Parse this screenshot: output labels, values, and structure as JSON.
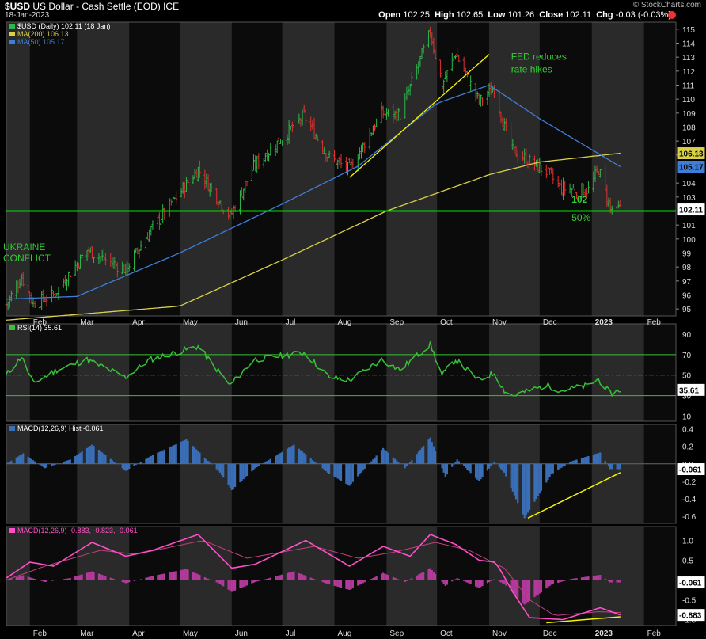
{
  "header": {
    "symbol": "$USD",
    "description": "US Dollar - Cash Settle (EOD)",
    "exchange": "ICE",
    "date": "18-Jan-2023",
    "watermark": "© StockCharts.com",
    "open_label": "Open",
    "open": "102.25",
    "high_label": "High",
    "high": "102.65",
    "low_label": "Low",
    "low": "101.26",
    "close_label": "Close",
    "close": "102.11",
    "chg_label": "Chg",
    "chg": "-0.03 (-0.03%)"
  },
  "colors": {
    "up": "#2db84a",
    "down": "#e03030",
    "ma200": "#d8cf4a",
    "ma50": "#3f7ed6",
    "rsi": "#38c038",
    "macd_hist": "#3a6fb8",
    "macd_line": "#ff4fc8",
    "support": "#00e000",
    "trend": "#f5f500",
    "annotation": "#33cc33"
  },
  "chart_data": [
    {
      "panel": "price",
      "type": "ohlc",
      "legend": [
        "$USD (Daily) 102.11 (18 Jan)",
        "MA(200) 106.13",
        "MA(50) 105.17"
      ],
      "ylim": [
        94.5,
        115.5
      ],
      "yticks": [
        95,
        96,
        97,
        98,
        99,
        100,
        101,
        102,
        103,
        104,
        105,
        106,
        107,
        108,
        109,
        110,
        111,
        112,
        113,
        114,
        115
      ],
      "xticks": [
        "Feb",
        "Mar",
        "Apr",
        "May",
        "Jun",
        "Jul",
        "Aug",
        "Sep",
        "Oct",
        "Nov",
        "Dec",
        "2023",
        "Feb"
      ],
      "x_start": "2022-01-18",
      "x_end": "2023-02-20",
      "close_anchors": [
        [
          "2022-01-18",
          95.3
        ],
        [
          "2022-01-27",
          97.3
        ],
        [
          "2022-02-03",
          95.4
        ],
        [
          "2022-02-15",
          96.0
        ],
        [
          "2022-03-07",
          99.2
        ],
        [
          "2022-03-30",
          97.8
        ],
        [
          "2022-04-13",
          100.5
        ],
        [
          "2022-05-12",
          105.0
        ],
        [
          "2022-05-31",
          101.6
        ],
        [
          "2022-06-14",
          105.2
        ],
        [
          "2022-07-14",
          108.8
        ],
        [
          "2022-07-29",
          105.8
        ],
        [
          "2022-08-10",
          105.0
        ],
        [
          "2022-08-29",
          109.0
        ],
        [
          "2022-09-09",
          108.9
        ],
        [
          "2022-09-27",
          114.8
        ],
        [
          "2022-10-04",
          111.0
        ],
        [
          "2022-10-12",
          113.3
        ],
        [
          "2022-10-26",
          109.8
        ],
        [
          "2022-11-04",
          110.8
        ],
        [
          "2022-11-10",
          108.0
        ],
        [
          "2022-11-15",
          106.3
        ],
        [
          "2022-12-05",
          104.8
        ],
        [
          "2022-12-14",
          103.6
        ],
        [
          "2022-12-30",
          103.5
        ],
        [
          "2023-01-05",
          105.0
        ],
        [
          "2023-01-12",
          102.2
        ],
        [
          "2023-01-18",
          102.11
        ]
      ],
      "ma200_anchors": [
        [
          "2022-01-18",
          94.2
        ],
        [
          "2022-05-01",
          95.2
        ],
        [
          "2022-07-01",
          98.5
        ],
        [
          "2022-09-01",
          102.0
        ],
        [
          "2022-11-01",
          104.6
        ],
        [
          "2022-12-01",
          105.5
        ],
        [
          "2023-01-18",
          106.13
        ]
      ],
      "ma50_anchors": [
        [
          "2022-01-18",
          95.7
        ],
        [
          "2022-03-01",
          95.9
        ],
        [
          "2022-05-01",
          99.0
        ],
        [
          "2022-07-01",
          102.5
        ],
        [
          "2022-08-15",
          105.2
        ],
        [
          "2022-10-01",
          109.7
        ],
        [
          "2022-11-01",
          111.0
        ],
        [
          "2022-12-01",
          108.6
        ],
        [
          "2023-01-18",
          105.17
        ]
      ],
      "last_value": "102.11",
      "ma200_value": "106.13",
      "ma50_value": "105.17",
      "support_level": 102,
      "annotations": [
        {
          "text": "UKRAINE",
          "date": "2022-01-18",
          "y": 99.2
        },
        {
          "text": "CONFLICT",
          "date": "2022-01-18",
          "y": 98.4
        },
        {
          "text": "FED reduces",
          "date": "2022-11-14",
          "y": 112.8
        },
        {
          "text": "rate hikes",
          "date": "2022-11-14",
          "y": 111.9
        },
        {
          "text": "102",
          "date": "2022-12-20",
          "y": 102.6
        },
        {
          "text": "50%",
          "date": "2022-12-20",
          "y": 101.3
        }
      ],
      "trendline": [
        [
          "2022-08-10",
          104.4
        ],
        [
          "2022-11-01",
          113.2
        ]
      ]
    },
    {
      "panel": "rsi",
      "type": "line",
      "legend": "RSI(14) 35.61",
      "ylim": [
        5,
        100
      ],
      "yticks": [
        10,
        30,
        50,
        70,
        90
      ],
      "levels": [
        30,
        50,
        70
      ],
      "last_value": "35.61",
      "anchors": [
        [
          "2022-01-18",
          50
        ],
        [
          "2022-01-27",
          68
        ],
        [
          "2022-02-03",
          42
        ],
        [
          "2022-02-17",
          55
        ],
        [
          "2022-03-07",
          65
        ],
        [
          "2022-03-30",
          48
        ],
        [
          "2022-04-13",
          65
        ],
        [
          "2022-05-12",
          78
        ],
        [
          "2022-05-31",
          40
        ],
        [
          "2022-06-14",
          65
        ],
        [
          "2022-07-14",
          72
        ],
        [
          "2022-07-29",
          48
        ],
        [
          "2022-08-10",
          45
        ],
        [
          "2022-08-29",
          65
        ],
        [
          "2022-09-09",
          55
        ],
        [
          "2022-09-27",
          80
        ],
        [
          "2022-10-04",
          50
        ],
        [
          "2022-10-12",
          65
        ],
        [
          "2022-10-26",
          45
        ],
        [
          "2022-11-04",
          52
        ],
        [
          "2022-11-10",
          35
        ],
        [
          "2022-11-15",
          30
        ],
        [
          "2022-12-05",
          40
        ],
        [
          "2022-12-14",
          35
        ],
        [
          "2022-12-30",
          40
        ],
        [
          "2023-01-05",
          46
        ],
        [
          "2023-01-12",
          32
        ],
        [
          "2023-01-18",
          35.6
        ]
      ]
    },
    {
      "panel": "macd_hist",
      "type": "bar",
      "legend": "MACD(12,26,9) Hist -0.061",
      "ylim": [
        -0.68,
        0.45
      ],
      "yticks": [
        0.4,
        0.2,
        0.0,
        -0.2,
        -0.4,
        -0.6
      ],
      "ytick_labels": [
        "0.4",
        "0.2",
        "0.0",
        "-0.2",
        "-0.4",
        "-0.6"
      ],
      "last_value": "-0.061",
      "anchors": [
        [
          "2022-01-18",
          0.0
        ],
        [
          "2022-01-28",
          0.12
        ],
        [
          "2022-02-10",
          -0.05
        ],
        [
          "2022-02-25",
          0.05
        ],
        [
          "2022-03-10",
          0.22
        ],
        [
          "2022-03-30",
          -0.08
        ],
        [
          "2022-04-15",
          0.1
        ],
        [
          "2022-05-05",
          0.28
        ],
        [
          "2022-05-25",
          -0.1
        ],
        [
          "2022-06-01",
          -0.3
        ],
        [
          "2022-06-15",
          -0.05
        ],
        [
          "2022-07-08",
          0.22
        ],
        [
          "2022-07-28",
          -0.1
        ],
        [
          "2022-08-10",
          -0.25
        ],
        [
          "2022-08-30",
          0.18
        ],
        [
          "2022-09-12",
          -0.05
        ],
        [
          "2022-09-27",
          0.3
        ],
        [
          "2022-10-06",
          -0.15
        ],
        [
          "2022-10-13",
          0.05
        ],
        [
          "2022-10-26",
          -0.2
        ],
        [
          "2022-11-04",
          0.02
        ],
        [
          "2022-11-10",
          -0.1
        ],
        [
          "2022-11-22",
          -0.62
        ],
        [
          "2022-12-08",
          -0.12
        ],
        [
          "2022-12-20",
          0.03
        ],
        [
          "2023-01-06",
          0.13
        ],
        [
          "2023-01-12",
          -0.06
        ],
        [
          "2023-01-18",
          -0.061
        ]
      ],
      "trendline": [
        [
          "2022-11-24",
          -0.62
        ],
        [
          "2023-01-18",
          -0.1
        ]
      ]
    },
    {
      "panel": "macd",
      "type": "line",
      "legend": "MACD(12,26,9) -0.883, -0.823, -0.061",
      "ylim": [
        -1.15,
        1.35
      ],
      "yticks": [
        1.0,
        0.5,
        -0.5,
        -1.0
      ],
      "ytick_labels": [
        "1.0",
        "0.5",
        "-0.5",
        "-1.0"
      ],
      "last_values": [
        "-0.061",
        "-0.883"
      ],
      "macd_anchors": [
        [
          "2022-01-18",
          0.05
        ],
        [
          "2022-02-01",
          0.45
        ],
        [
          "2022-02-15",
          0.35
        ],
        [
          "2022-03-10",
          0.95
        ],
        [
          "2022-03-30",
          0.6
        ],
        [
          "2022-04-15",
          0.75
        ],
        [
          "2022-05-12",
          1.15
        ],
        [
          "2022-06-01",
          0.3
        ],
        [
          "2022-06-15",
          0.4
        ],
        [
          "2022-07-15",
          1.0
        ],
        [
          "2022-08-10",
          0.35
        ],
        [
          "2022-08-30",
          0.85
        ],
        [
          "2022-09-15",
          0.6
        ],
        [
          "2022-09-27",
          1.15
        ],
        [
          "2022-10-12",
          0.9
        ],
        [
          "2022-10-26",
          0.5
        ],
        [
          "2022-11-05",
          0.45
        ],
        [
          "2022-11-15",
          -0.3
        ],
        [
          "2022-11-25",
          -0.95
        ],
        [
          "2022-12-15",
          -1.0
        ],
        [
          "2023-01-06",
          -0.7
        ],
        [
          "2023-01-18",
          -0.883
        ]
      ],
      "signal_anchors": [
        [
          "2022-01-18",
          0.0
        ],
        [
          "2022-02-10",
          0.35
        ],
        [
          "2022-03-15",
          0.75
        ],
        [
          "2022-04-05",
          0.65
        ],
        [
          "2022-05-15",
          1.0
        ],
        [
          "2022-06-10",
          0.55
        ],
        [
          "2022-07-20",
          0.85
        ],
        [
          "2022-08-15",
          0.55
        ],
        [
          "2022-09-05",
          0.7
        ],
        [
          "2022-09-30",
          0.95
        ],
        [
          "2022-10-20",
          0.75
        ],
        [
          "2022-11-10",
          0.3
        ],
        [
          "2022-11-25",
          -0.5
        ],
        [
          "2022-12-10",
          -0.9
        ],
        [
          "2023-01-05",
          -0.8
        ],
        [
          "2023-01-18",
          -0.823
        ]
      ],
      "hist_anchors": [
        [
          "2022-01-18",
          0.0
        ],
        [
          "2022-01-28",
          0.12
        ],
        [
          "2022-02-10",
          -0.05
        ],
        [
          "2022-02-25",
          0.05
        ],
        [
          "2022-03-10",
          0.22
        ],
        [
          "2022-03-30",
          -0.08
        ],
        [
          "2022-04-15",
          0.1
        ],
        [
          "2022-05-05",
          0.28
        ],
        [
          "2022-05-25",
          -0.1
        ],
        [
          "2022-06-01",
          -0.3
        ],
        [
          "2022-06-15",
          -0.05
        ],
        [
          "2022-07-08",
          0.22
        ],
        [
          "2022-07-28",
          -0.1
        ],
        [
          "2022-08-10",
          -0.25
        ],
        [
          "2022-08-30",
          0.18
        ],
        [
          "2022-09-12",
          -0.05
        ],
        [
          "2022-09-27",
          0.3
        ],
        [
          "2022-10-06",
          -0.15
        ],
        [
          "2022-10-13",
          0.05
        ],
        [
          "2022-10-26",
          -0.2
        ],
        [
          "2022-11-04",
          0.02
        ],
        [
          "2022-11-10",
          -0.1
        ],
        [
          "2022-11-22",
          -0.62
        ],
        [
          "2022-12-08",
          -0.12
        ],
        [
          "2022-12-20",
          0.03
        ],
        [
          "2023-01-06",
          0.13
        ],
        [
          "2023-01-12",
          -0.06
        ],
        [
          "2023-01-18",
          -0.061
        ]
      ],
      "trendline": [
        [
          "2022-12-05",
          -1.08
        ],
        [
          "2023-01-18",
          -0.93
        ]
      ]
    }
  ]
}
